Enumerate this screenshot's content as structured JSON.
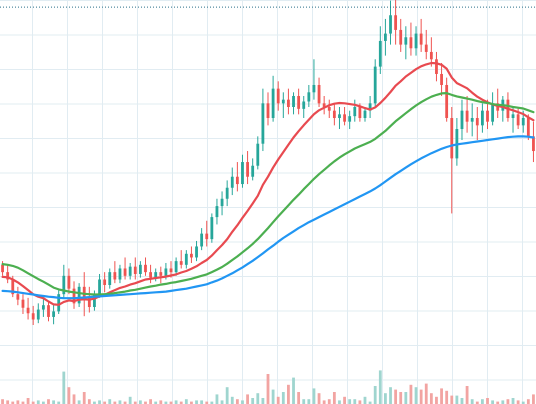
{
  "colors": {
    "background": "#ffffff",
    "grid": "#e1ecf2",
    "up": "#26a69a",
    "down": "#ef5350",
    "vol_up": "#9fd5cf",
    "vol_down": "#f2a4a2",
    "ma_fast": "#e84a50",
    "ma_mid": "#4caf50",
    "ma_slow": "#2196f3",
    "price_line": "#2a6f89"
  },
  "chart_data": {
    "type": "candlestick",
    "title": "",
    "xlabel": "",
    "ylabel": "",
    "grid": true,
    "price_range": [
      0,
      100
    ],
    "volume_range": [
      0,
      100
    ],
    "horizontal_price_line": 97.5,
    "candles": [
      {
        "o": 27.3,
        "h": 28.3,
        "l": 24.3,
        "c": 25.3
      },
      {
        "o": 25.3,
        "h": 27.3,
        "l": 22.3,
        "c": 23.3
      },
      {
        "o": 23.3,
        "h": 24.3,
        "l": 18.5,
        "c": 19.3
      },
      {
        "o": 19.3,
        "h": 21.3,
        "l": 16.3,
        "c": 17.8
      },
      {
        "o": 17.8,
        "h": 19.3,
        "l": 13.9,
        "c": 15.6
      },
      {
        "o": 15.6,
        "h": 18.3,
        "l": 12.4,
        "c": 14.1
      },
      {
        "o": 14.1,
        "h": 16.1,
        "l": 10.9,
        "c": 12.4
      },
      {
        "o": 12.4,
        "h": 16.8,
        "l": 11.4,
        "c": 15.1
      },
      {
        "o": 15.1,
        "h": 18.3,
        "l": 13.1,
        "c": 16.3
      },
      {
        "o": 16.3,
        "h": 17.3,
        "l": 11.9,
        "c": 13.1
      },
      {
        "o": 13.1,
        "h": 16.3,
        "l": 11.1,
        "c": 14.6
      },
      {
        "o": 14.6,
        "h": 20.3,
        "l": 13.9,
        "c": 19.3
      },
      {
        "o": 19.3,
        "h": 27.3,
        "l": 18.3,
        "c": 24.3
      },
      {
        "o": 24.3,
        "h": 26.3,
        "l": 19.3,
        "c": 20.8
      },
      {
        "o": 20.8,
        "h": 22.8,
        "l": 15.3,
        "c": 16.8
      },
      {
        "o": 16.8,
        "h": 22.3,
        "l": 15.8,
        "c": 21.3
      },
      {
        "o": 21.3,
        "h": 25.3,
        "l": 13.3,
        "c": 18.3
      },
      {
        "o": 18.3,
        "h": 21.3,
        "l": 14.3,
        "c": 15.8
      },
      {
        "o": 15.8,
        "h": 20.3,
        "l": 14.8,
        "c": 19.3
      },
      {
        "o": 19.3,
        "h": 24.8,
        "l": 18.3,
        "c": 23.3
      },
      {
        "o": 23.3,
        "h": 25.3,
        "l": 19.8,
        "c": 21.8
      },
      {
        "o": 21.8,
        "h": 26.3,
        "l": 20.8,
        "c": 25.3
      },
      {
        "o": 25.3,
        "h": 28.3,
        "l": 22.3,
        "c": 23.3
      },
      {
        "o": 23.3,
        "h": 27.3,
        "l": 22.3,
        "c": 26.3
      },
      {
        "o": 26.3,
        "h": 29.3,
        "l": 23.3,
        "c": 24.3
      },
      {
        "o": 24.3,
        "h": 27.8,
        "l": 23.3,
        "c": 26.8
      },
      {
        "o": 26.8,
        "h": 29.3,
        "l": 23.3,
        "c": 24.8
      },
      {
        "o": 24.8,
        "h": 28.3,
        "l": 23.8,
        "c": 27.3
      },
      {
        "o": 27.3,
        "h": 29.3,
        "l": 24.3,
        "c": 25.3
      },
      {
        "o": 25.3,
        "h": 27.3,
        "l": 22.3,
        "c": 23.8
      },
      {
        "o": 23.8,
        "h": 26.3,
        "l": 22.8,
        "c": 25.3
      },
      {
        "o": 25.3,
        "h": 26.8,
        "l": 22.3,
        "c": 24.3
      },
      {
        "o": 24.3,
        "h": 27.8,
        "l": 23.3,
        "c": 26.3
      },
      {
        "o": 26.3,
        "h": 28.3,
        "l": 23.8,
        "c": 25.3
      },
      {
        "o": 25.3,
        "h": 29.3,
        "l": 24.3,
        "c": 28.3
      },
      {
        "o": 28.3,
        "h": 31.3,
        "l": 26.3,
        "c": 27.3
      },
      {
        "o": 27.3,
        "h": 31.3,
        "l": 26.3,
        "c": 30.3
      },
      {
        "o": 30.3,
        "h": 32.3,
        "l": 27.8,
        "c": 29.3
      },
      {
        "o": 29.3,
        "h": 33.8,
        "l": 28.3,
        "c": 32.3
      },
      {
        "o": 32.3,
        "h": 37.3,
        "l": 31.3,
        "c": 35.8
      },
      {
        "o": 35.8,
        "h": 39.3,
        "l": 32.3,
        "c": 34.3
      },
      {
        "o": 34.3,
        "h": 41.3,
        "l": 33.3,
        "c": 40.3
      },
      {
        "o": 40.3,
        "h": 45.3,
        "l": 38.3,
        "c": 43.3
      },
      {
        "o": 43.3,
        "h": 47.3,
        "l": 40.8,
        "c": 45.3
      },
      {
        "o": 45.3,
        "h": 50.3,
        "l": 43.3,
        "c": 48.3
      },
      {
        "o": 48.3,
        "h": 53.8,
        "l": 46.3,
        "c": 51.3
      },
      {
        "o": 51.3,
        "h": 55.3,
        "l": 47.3,
        "c": 49.3
      },
      {
        "o": 49.3,
        "h": 57.3,
        "l": 48.3,
        "c": 55.3
      },
      {
        "o": 55.3,
        "h": 58.3,
        "l": 49.3,
        "c": 51.3
      },
      {
        "o": 51.3,
        "h": 56.3,
        "l": 50.3,
        "c": 54.3
      },
      {
        "o": 54.3,
        "h": 62.3,
        "l": 53.3,
        "c": 60.3
      },
      {
        "o": 60.3,
        "h": 75.3,
        "l": 58.3,
        "c": 71.3
      },
      {
        "o": 71.3,
        "h": 74.3,
        "l": 65.3,
        "c": 67.3
      },
      {
        "o": 67.3,
        "h": 78.8,
        "l": 66.3,
        "c": 75.3
      },
      {
        "o": 75.3,
        "h": 77.3,
        "l": 69.3,
        "c": 71.3
      },
      {
        "o": 71.3,
        "h": 74.3,
        "l": 67.3,
        "c": 72.3
      },
      {
        "o": 72.3,
        "h": 75.3,
        "l": 68.3,
        "c": 70.3
      },
      {
        "o": 70.3,
        "h": 74.3,
        "l": 68.3,
        "c": 73.3
      },
      {
        "o": 73.3,
        "h": 75.3,
        "l": 68.3,
        "c": 69.8
      },
      {
        "o": 69.8,
        "h": 73.3,
        "l": 67.3,
        "c": 71.8
      },
      {
        "o": 71.8,
        "h": 76.3,
        "l": 70.3,
        "c": 74.3
      },
      {
        "o": 74.3,
        "h": 83.3,
        "l": 72.3,
        "c": 76.3
      },
      {
        "o": 76.3,
        "h": 78.3,
        "l": 70.3,
        "c": 71.3
      },
      {
        "o": 71.3,
        "h": 73.3,
        "l": 68.3,
        "c": 70.3
      },
      {
        "o": 70.3,
        "h": 72.3,
        "l": 67.3,
        "c": 69.3
      },
      {
        "o": 69.3,
        "h": 71.3,
        "l": 65.3,
        "c": 67.3
      },
      {
        "o": 67.3,
        "h": 70.3,
        "l": 64.3,
        "c": 68.3
      },
      {
        "o": 68.3,
        "h": 70.3,
        "l": 65.3,
        "c": 66.3
      },
      {
        "o": 66.3,
        "h": 69.3,
        "l": 64.3,
        "c": 67.8
      },
      {
        "o": 67.8,
        "h": 72.3,
        "l": 66.3,
        "c": 70.3
      },
      {
        "o": 70.3,
        "h": 71.3,
        "l": 66.3,
        "c": 67.3
      },
      {
        "o": 67.3,
        "h": 70.3,
        "l": 66.3,
        "c": 69.3
      },
      {
        "o": 69.3,
        "h": 73.3,
        "l": 67.3,
        "c": 71.3
      },
      {
        "o": 71.3,
        "h": 83.3,
        "l": 70.3,
        "c": 81.3
      },
      {
        "o": 81.3,
        "h": 92.3,
        "l": 79.3,
        "c": 88.3
      },
      {
        "o": 88.3,
        "h": 94.3,
        "l": 84.3,
        "c": 90.3
      },
      {
        "o": 90.3,
        "h": 99.3,
        "l": 87.3,
        "c": 95.3
      },
      {
        "o": 95.3,
        "h": 101.0,
        "l": 87.3,
        "c": 91.3
      },
      {
        "o": 91.3,
        "h": 94.3,
        "l": 85.3,
        "c": 87.3
      },
      {
        "o": 87.3,
        "h": 92.3,
        "l": 83.3,
        "c": 89.3
      },
      {
        "o": 89.3,
        "h": 93.3,
        "l": 84.3,
        "c": 86.3
      },
      {
        "o": 86.3,
        "h": 92.3,
        "l": 84.3,
        "c": 90.3
      },
      {
        "o": 90.3,
        "h": 94.3,
        "l": 85.3,
        "c": 87.3
      },
      {
        "o": 87.3,
        "h": 91.3,
        "l": 83.3,
        "c": 85.3
      },
      {
        "o": 85.3,
        "h": 89.3,
        "l": 81.3,
        "c": 83.3
      },
      {
        "o": 83.3,
        "h": 85.3,
        "l": 77.3,
        "c": 79.3
      },
      {
        "o": 79.3,
        "h": 82.3,
        "l": 73.3,
        "c": 76.3
      },
      {
        "o": 76.3,
        "h": 78.3,
        "l": 66.3,
        "c": 67.3
      },
      {
        "o": 67.3,
        "h": 70.3,
        "l": 41.3,
        "c": 56.3
      },
      {
        "o": 56.3,
        "h": 67.3,
        "l": 54.3,
        "c": 64.3
      },
      {
        "o": 64.3,
        "h": 72.3,
        "l": 61.3,
        "c": 69.3
      },
      {
        "o": 69.3,
        "h": 73.3,
        "l": 63.3,
        "c": 66.3
      },
      {
        "o": 66.3,
        "h": 71.3,
        "l": 62.3,
        "c": 67.3
      },
      {
        "o": 67.3,
        "h": 70.3,
        "l": 61.3,
        "c": 65.3
      },
      {
        "o": 65.3,
        "h": 71.3,
        "l": 63.3,
        "c": 69.3
      },
      {
        "o": 69.3,
        "h": 72.3,
        "l": 64.3,
        "c": 66.3
      },
      {
        "o": 66.3,
        "h": 74.3,
        "l": 65.3,
        "c": 71.3
      },
      {
        "o": 71.3,
        "h": 75.3,
        "l": 67.3,
        "c": 69.3
      },
      {
        "o": 69.3,
        "h": 73.3,
        "l": 66.3,
        "c": 72.3
      },
      {
        "o": 72.3,
        "h": 74.3,
        "l": 66.3,
        "c": 67.3
      },
      {
        "o": 67.3,
        "h": 70.3,
        "l": 63.3,
        "c": 68.3
      },
      {
        "o": 68.3,
        "h": 70.3,
        "l": 64.3,
        "c": 65.3
      },
      {
        "o": 65.3,
        "h": 69.3,
        "l": 63.3,
        "c": 67.3
      },
      {
        "o": 67.3,
        "h": 68.3,
        "l": 61.3,
        "c": 62.3
      },
      {
        "o": 62.3,
        "h": 66.3,
        "l": 55.3,
        "c": 58.3
      }
    ],
    "volume": [
      4,
      3,
      2,
      3,
      2,
      5,
      2,
      3,
      2,
      4,
      3,
      2,
      27,
      14,
      8,
      3,
      10,
      4,
      2,
      3,
      2,
      4,
      2,
      3,
      2,
      6,
      2,
      3,
      2,
      4,
      2,
      3,
      2,
      2,
      3,
      2,
      4,
      2,
      3,
      3,
      2,
      2,
      8,
      3,
      14,
      6,
      4,
      3,
      8,
      5,
      9,
      5,
      25,
      12,
      6,
      10,
      16,
      22,
      10,
      4,
      4,
      13,
      9,
      3,
      4,
      10,
      3,
      6,
      4,
      4,
      3,
      6,
      2,
      15,
      28,
      9,
      14,
      12,
      10,
      10,
      16,
      14,
      12,
      17,
      9,
      6,
      13,
      11,
      7,
      7,
      5,
      15,
      4,
      2,
      4,
      5,
      3,
      2,
      3,
      4,
      5,
      3,
      2,
      4,
      8
    ],
    "moving_averages": [
      {
        "period_label": "",
        "color_key": "ma_fast",
        "values": [
          24.0,
          23.9,
          23.3,
          22.5,
          21.5,
          20.4,
          19.3,
          18.6,
          18.2,
          17.3,
          16.5,
          16.4,
          17.2,
          17.6,
          17.4,
          17.8,
          17.9,
          17.8,
          18.1,
          18.7,
          19.1,
          19.8,
          20.4,
          21.0,
          21.4,
          21.9,
          22.3,
          22.8,
          23.3,
          23.5,
          23.7,
          23.9,
          24.1,
          24.4,
          24.7,
          25.2,
          25.6,
          26.2,
          26.9,
          27.8,
          28.6,
          29.8,
          31.3,
          32.7,
          34.3,
          36.3,
          38.1,
          40.1,
          42.0,
          44.0,
          46.1,
          49.1,
          51.3,
          53.8,
          56.0,
          58.0,
          60.0,
          62.0,
          63.7,
          65.3,
          66.8,
          68.3,
          69.4,
          70.1,
          70.8,
          71.2,
          71.4,
          71.3,
          71.1,
          70.9,
          70.5,
          70.0,
          69.6,
          70.2,
          71.4,
          72.8,
          74.4,
          76.1,
          77.3,
          78.6,
          79.6,
          80.6,
          81.4,
          81.9,
          82.3,
          82.2,
          81.8,
          80.7,
          78.3,
          76.8,
          76.1,
          75.4,
          74.2,
          73.1,
          72.3,
          71.6,
          71.0,
          70.6,
          70.3,
          69.8,
          69.4,
          68.9,
          68.4,
          67.5,
          66.7
        ]
      },
      {
        "period_label": "",
        "color_key": "ma_mid",
        "values": [
          27.5,
          27.3,
          27.0,
          26.5,
          25.8,
          25.0,
          24.2,
          23.4,
          22.7,
          21.9,
          21.1,
          20.6,
          20.3,
          20.0,
          19.8,
          19.6,
          19.4,
          19.3,
          19.2,
          19.2,
          19.3,
          19.4,
          19.6,
          19.8,
          20.0,
          20.3,
          20.5,
          20.8,
          21.1,
          21.4,
          21.6,
          21.9,
          22.1,
          22.4,
          22.6,
          22.9,
          23.2,
          23.5,
          23.9,
          24.3,
          24.7,
          25.3,
          26.0,
          26.7,
          27.6,
          28.6,
          29.6,
          30.7,
          31.8,
          33.0,
          34.3,
          35.8,
          37.3,
          38.9,
          40.5,
          42.0,
          43.5,
          45.0,
          46.4,
          47.9,
          49.3,
          50.7,
          52.0,
          53.2,
          54.4,
          55.5,
          56.5,
          57.4,
          58.2,
          59.0,
          59.6,
          60.2,
          60.8,
          61.6,
          62.7,
          63.8,
          65.1,
          66.4,
          67.5,
          68.6,
          69.7,
          70.7,
          71.6,
          72.4,
          73.1,
          73.6,
          74.0,
          74.1,
          73.6,
          73.2,
          72.9,
          72.6,
          72.3,
          71.9,
          71.6,
          71.4,
          71.1,
          70.9,
          70.8,
          70.6,
          70.3,
          70.1,
          69.9,
          69.4,
          68.9
        ]
      },
      {
        "period_label": "",
        "color_key": "ma_slow",
        "values": [
          20.2,
          20.1,
          20.0,
          19.8,
          19.6,
          19.4,
          19.2,
          19.0,
          18.8,
          18.6,
          18.5,
          18.3,
          18.2,
          18.2,
          18.2,
          18.3,
          18.4,
          18.5,
          18.6,
          18.7,
          18.8,
          18.9,
          19.0,
          19.1,
          19.2,
          19.3,
          19.4,
          19.5,
          19.6,
          19.7,
          19.8,
          19.9,
          20.0,
          20.2,
          20.4,
          20.6,
          20.8,
          21.1,
          21.4,
          21.7,
          22.0,
          22.5,
          23.0,
          23.6,
          24.3,
          25.0,
          25.8,
          26.6,
          27.5,
          28.4,
          29.4,
          30.4,
          31.5,
          32.5,
          33.6,
          34.6,
          35.5,
          36.4,
          37.3,
          38.1,
          38.9,
          39.6,
          40.3,
          41.0,
          41.7,
          42.4,
          43.1,
          43.8,
          44.5,
          45.2,
          45.9,
          46.6,
          47.3,
          48.1,
          49.0,
          50.0,
          51.0,
          52.0,
          52.9,
          53.8,
          54.7,
          55.5,
          56.3,
          57.0,
          57.7,
          58.3,
          58.9,
          59.4,
          59.8,
          60.1,
          60.3,
          60.5,
          60.7,
          60.9,
          61.1,
          61.3,
          61.5,
          61.7,
          61.9,
          62.1,
          62.2,
          62.3,
          62.3,
          62.2,
          62.0
        ]
      }
    ]
  }
}
